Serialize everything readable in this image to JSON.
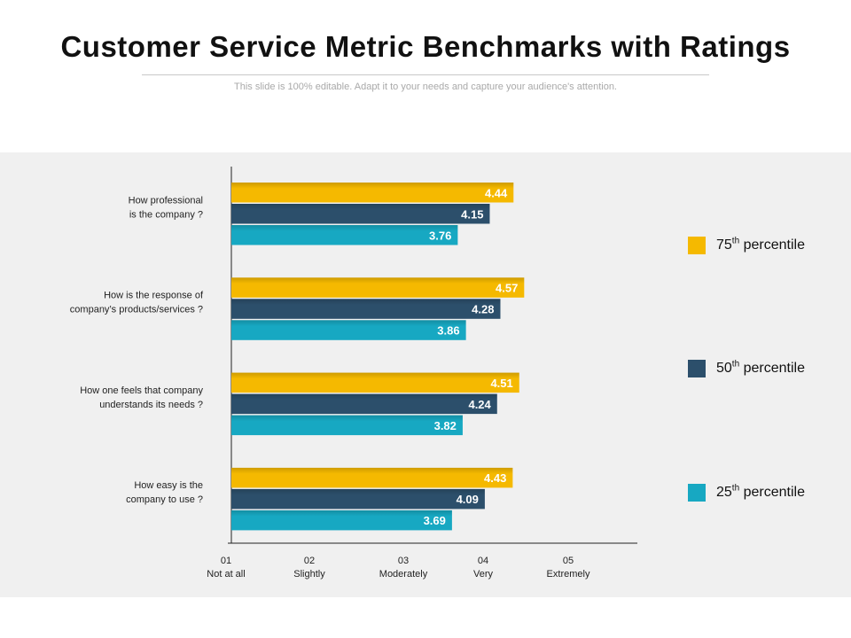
{
  "header": {
    "title": "Customer Service Metric Benchmarks with Ratings",
    "subtitle": "This slide is 100% editable. Adapt it to your needs and capture your audience's attention."
  },
  "colors": {
    "p75": "#F5B900",
    "p50": "#2C4F6B",
    "p25": "#17A8C2",
    "panel": "#F0F0F0"
  },
  "legend": [
    {
      "num": "75",
      "sup": "th",
      "text": "percentile",
      "color": "#F5B900"
    },
    {
      "num": "50",
      "sup": "th",
      "text": "percentile",
      "color": "#2C4F6B"
    },
    {
      "num": "25",
      "sup": "th",
      "text": "percentile",
      "color": "#17A8C2"
    }
  ],
  "chart_data": {
    "type": "bar",
    "orientation": "horizontal",
    "categories": [
      [
        "How professional",
        "is the company  ?"
      ],
      [
        "How is the response of",
        "company’s products/services  ?"
      ],
      [
        "How one feels that company",
        "understands its needs  ?"
      ],
      [
        "How easy is the",
        "company to use  ?"
      ]
    ],
    "series": [
      {
        "name": "75th percentile",
        "values": [
          4.44,
          4.57,
          4.51,
          4.43
        ]
      },
      {
        "name": "50th percentile",
        "values": [
          4.15,
          4.28,
          4.24,
          4.09
        ]
      },
      {
        "name": "25th percentile",
        "values": [
          3.76,
          3.86,
          3.82,
          3.69
        ]
      }
    ],
    "x_ticks": [
      {
        "num": "01",
        "label": "Not at all",
        "value": 1
      },
      {
        "num": "02",
        "label": "Slightly",
        "value": 2
      },
      {
        "num": "03",
        "label": "Moderately",
        "value": 3
      },
      {
        "num": "04",
        "label": "Very",
        "value": 4
      },
      {
        "num": "05",
        "label": "Extremely",
        "value": 5
      }
    ],
    "xlim": [
      1,
      5.95
    ]
  }
}
